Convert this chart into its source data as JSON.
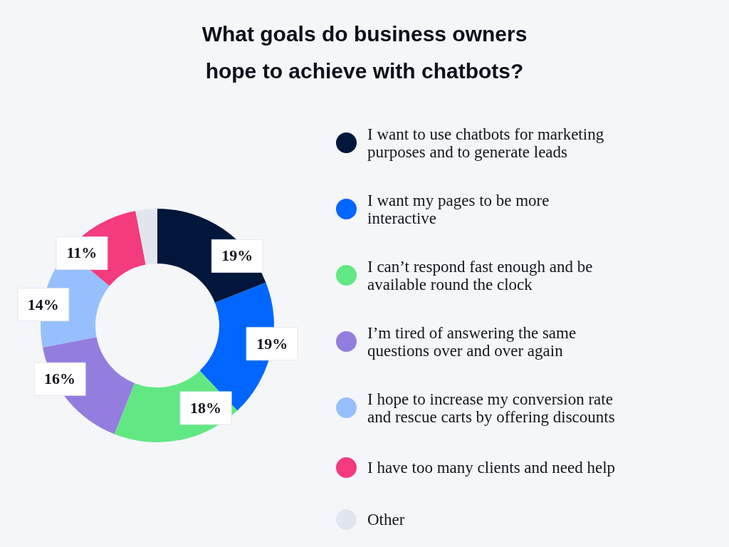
{
  "chart_data": {
    "type": "donut",
    "title": "What goals do business owners hope to achieve with chatbots?",
    "categories": [
      "I want to use chatbots for marketing purposes and to generate leads",
      "I want my pages to be more interactive",
      "I can’t respond fast enough and be available round the clock",
      "I’m tired of answering the same questions over and over again",
      "I hope to increase my conversion rate and rescue carts by offering discounts",
      "I have too many clients and need help",
      "Other"
    ],
    "values": [
      19,
      19,
      18,
      16,
      14,
      11,
      3
    ],
    "colors": [
      "#00163a",
      "#0066ff",
      "#62e882",
      "#937ddf",
      "#96bffd",
      "#f43b7b",
      "#e1e6ee"
    ],
    "value_labels": [
      "19%",
      "19%",
      "18%",
      "16%",
      "14%",
      "11%",
      null
    ],
    "legend": "right"
  }
}
